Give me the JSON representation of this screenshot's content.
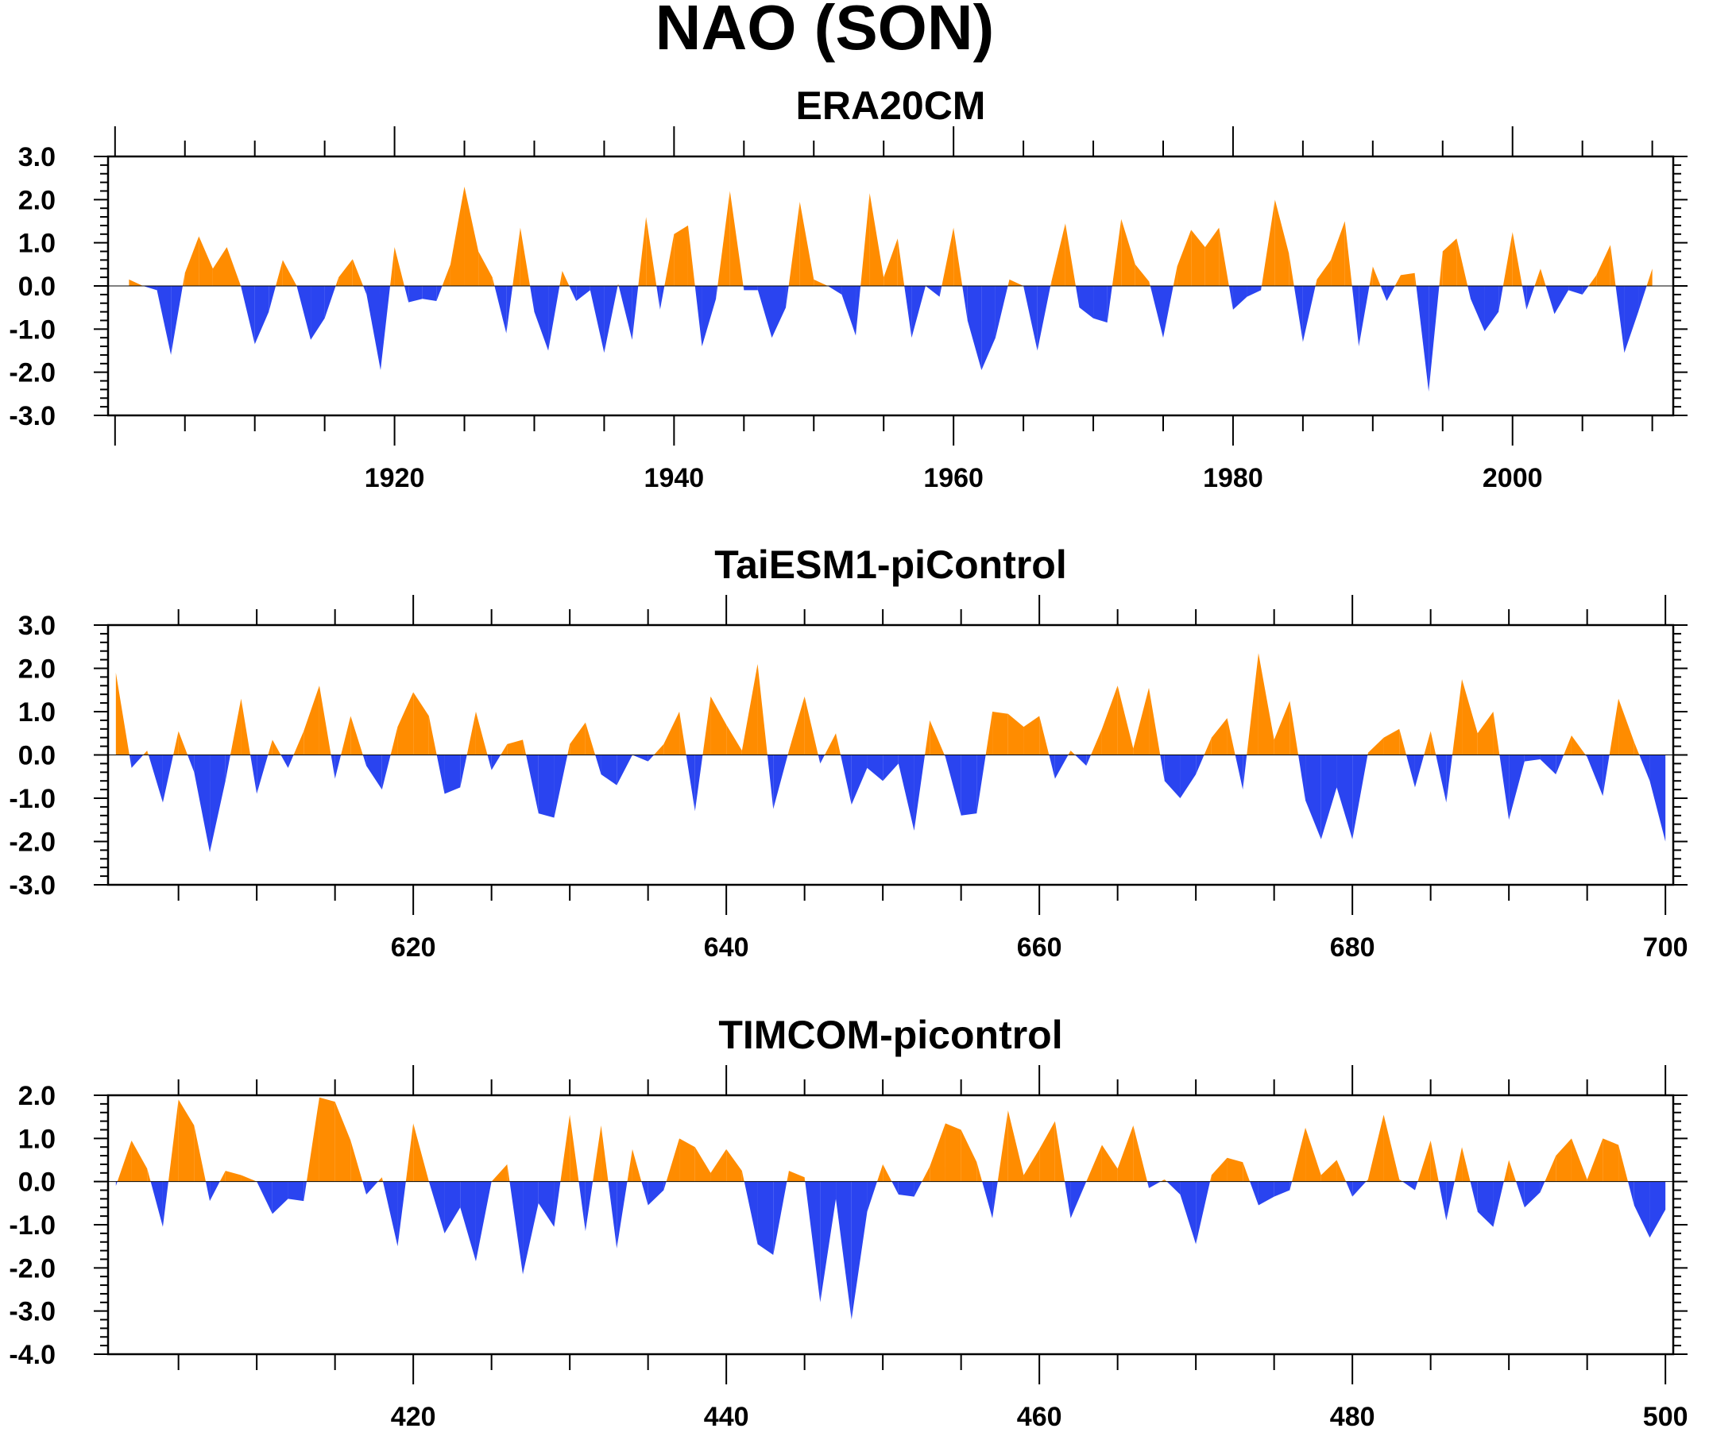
{
  "title": "NAO (SON)",
  "colors": {
    "positive": "#ff8c00",
    "negative": "#2a44f0"
  },
  "chart_data": [
    {
      "type": "area",
      "title": "ERA20CM",
      "xlabel": "",
      "ylabel": "",
      "x_start": 1901,
      "xlim": [
        1899.5,
        2011.5
      ],
      "ylim": [
        -3.0,
        3.0
      ],
      "yticks": [
        "3.0",
        "2.0",
        "1.0",
        "0.0",
        "-1.0",
        "-2.0",
        "-3.0"
      ],
      "xticks": [
        "1920",
        "1940",
        "1960",
        "1980",
        "2000"
      ],
      "values": [
        0.15,
        0.0,
        -0.1,
        -1.6,
        0.3,
        1.15,
        0.4,
        0.9,
        0.0,
        -1.35,
        -0.6,
        0.6,
        0.0,
        -1.25,
        -0.75,
        0.2,
        0.62,
        -0.2,
        -1.95,
        0.9,
        -0.38,
        -0.3,
        -0.35,
        0.5,
        2.3,
        0.8,
        0.2,
        -1.1,
        1.35,
        -0.6,
        -1.5,
        0.35,
        -0.35,
        -0.1,
        -1.55,
        0.05,
        -1.25,
        1.6,
        -0.55,
        1.2,
        1.4,
        -1.4,
        -0.3,
        2.2,
        -0.1,
        -0.1,
        -1.2,
        -0.5,
        1.95,
        0.15,
        0.0,
        -0.2,
        -1.15,
        2.15,
        0.2,
        1.1,
        -1.2,
        0.0,
        -0.25,
        1.35,
        -0.8,
        -1.95,
        -1.2,
        0.15,
        0.0,
        -1.5,
        0.1,
        1.45,
        -0.5,
        -0.75,
        -0.85,
        1.55,
        0.5,
        0.1,
        -1.2,
        0.45,
        1.3,
        0.9,
        1.35,
        -0.55,
        -0.25,
        -0.1,
        2.0,
        0.75,
        -1.3,
        0.15,
        0.6,
        1.5,
        -1.4,
        0.45,
        -0.35,
        0.25,
        0.3,
        -2.45,
        0.8,
        1.1,
        -0.3,
        -1.05,
        -0.6,
        1.25,
        -0.55,
        0.4,
        -0.65,
        -0.1,
        -0.2,
        0.25,
        0.95,
        -1.55,
        -0.6,
        0.4
      ]
    },
    {
      "type": "area",
      "title": "TaiESM1-piControl",
      "xlabel": "",
      "ylabel": "",
      "x_start": 601,
      "xlim": [
        600.5,
        700.5
      ],
      "ylim": [
        -3.0,
        3.0
      ],
      "yticks": [
        "3.0",
        "2.0",
        "1.0",
        "0.0",
        "-1.0",
        "-2.0",
        "-3.0"
      ],
      "xticks": [
        "620",
        "640",
        "660",
        "680",
        "700"
      ],
      "values": [
        1.9,
        -0.3,
        0.1,
        -1.1,
        0.55,
        -0.4,
        -2.25,
        -0.6,
        1.3,
        -0.9,
        0.35,
        -0.3,
        0.55,
        1.6,
        -0.55,
        0.9,
        -0.25,
        -0.8,
        0.65,
        1.45,
        0.9,
        -0.9,
        -0.75,
        1.0,
        -0.35,
        0.25,
        0.35,
        -1.35,
        -1.45,
        0.25,
        0.75,
        -0.45,
        -0.7,
        0.0,
        -0.15,
        0.25,
        1.0,
        -1.3,
        1.35,
        0.7,
        0.1,
        2.1,
        -1.25,
        0.1,
        1.35,
        -0.2,
        0.5,
        -1.15,
        -0.3,
        -0.6,
        -0.2,
        -1.75,
        0.8,
        -0.05,
        -1.4,
        -1.35,
        1.0,
        0.95,
        0.65,
        0.9,
        -0.55,
        0.1,
        -0.25,
        0.6,
        1.6,
        0.15,
        1.55,
        -0.6,
        -1.0,
        -0.45,
        0.4,
        0.85,
        -0.8,
        2.35,
        0.35,
        1.25,
        -1.05,
        -1.95,
        -0.75,
        -1.95,
        0.05,
        0.4,
        0.6,
        -0.75,
        0.55,
        -1.1,
        1.75,
        0.5,
        1.0,
        -1.5,
        -0.15,
        -0.1,
        -0.45,
        0.45,
        -0.05,
        -0.95,
        1.3,
        0.3,
        -0.6,
        -2.0
      ]
    },
    {
      "type": "area",
      "title": "TIMCOM-picontrol",
      "xlabel": "",
      "ylabel": "",
      "x_start": 401,
      "xlim": [
        400.5,
        500.5
      ],
      "ylim": [
        -4.0,
        2.0
      ],
      "yticks": [
        "2.0",
        "1.0",
        "0.0",
        "-1.0",
        "-2.0",
        "-3.0",
        "-4.0"
      ],
      "xticks": [
        "420",
        "440",
        "460",
        "480",
        "500"
      ],
      "values": [
        -0.1,
        0.95,
        0.3,
        -1.05,
        1.9,
        1.3,
        -0.45,
        0.25,
        0.15,
        0.0,
        -0.75,
        -0.4,
        -0.45,
        1.95,
        1.85,
        0.95,
        -0.3,
        0.1,
        -1.5,
        1.35,
        0.0,
        -1.2,
        -0.6,
        -1.85,
        0.0,
        0.4,
        -2.15,
        -0.5,
        -1.05,
        1.55,
        -1.15,
        1.3,
        -1.55,
        0.75,
        -0.55,
        -0.2,
        1.0,
        0.8,
        0.2,
        0.75,
        0.25,
        -1.45,
        -1.7,
        0.25,
        0.1,
        -2.8,
        -0.4,
        -3.2,
        -0.7,
        0.4,
        -0.3,
        -0.35,
        0.35,
        1.35,
        1.2,
        0.45,
        -0.85,
        1.65,
        0.15,
        0.75,
        1.4,
        -0.85,
        0.0,
        0.85,
        0.3,
        1.3,
        -0.15,
        0.05,
        -0.3,
        -1.45,
        0.15,
        0.55,
        0.45,
        -0.55,
        -0.35,
        -0.2,
        1.25,
        0.15,
        0.5,
        -0.35,
        0.05,
        1.55,
        0.05,
        -0.2,
        0.95,
        -0.9,
        0.8,
        -0.7,
        -1.05,
        0.5,
        -0.6,
        -0.25,
        0.6,
        1.0,
        0.05,
        1.0,
        0.85,
        -0.55,
        -1.3,
        -0.65
      ]
    }
  ]
}
